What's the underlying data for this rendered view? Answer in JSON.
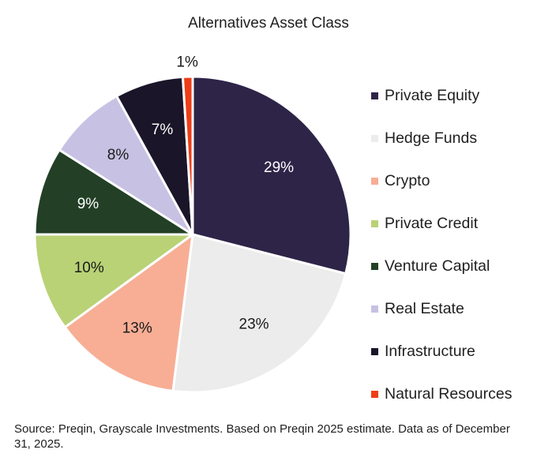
{
  "chart_data": {
    "type": "pie",
    "title": "Alternatives Asset Class",
    "slices": [
      {
        "label": "Private Equity",
        "value": 29,
        "display": "29%",
        "color": "#2e2448",
        "label_color": "#ffffff"
      },
      {
        "label": "Hedge Funds",
        "value": 23,
        "display": "23%",
        "color": "#ececec",
        "label_color": "#1a1a1a"
      },
      {
        "label": "Crypto",
        "value": 13,
        "display": "13%",
        "color": "#f7ae95",
        "label_color": "#1a1a1a"
      },
      {
        "label": "Private Credit",
        "value": 10,
        "display": "10%",
        "color": "#b9d276",
        "label_color": "#1a1a1a"
      },
      {
        "label": "Venture Capital",
        "value": 9,
        "display": "9%",
        "color": "#234026",
        "label_color": "#ffffff"
      },
      {
        "label": "Real Estate",
        "value": 8,
        "display": "8%",
        "color": "#c7c1e3",
        "label_color": "#1a1a1a"
      },
      {
        "label": "Infrastructure",
        "value": 7,
        "display": "7%",
        "color": "#1b1529",
        "label_color": "#ffffff"
      },
      {
        "label": "Natural Resources",
        "value": 1,
        "display": "1%",
        "color": "#ee3d17",
        "label_color": "#1a1a1a"
      }
    ],
    "legend_position": "right"
  },
  "source_note": "Source: Preqin, Grayscale Investments. Based on Preqin 2025 estimate. Data as of December 31, 2025."
}
